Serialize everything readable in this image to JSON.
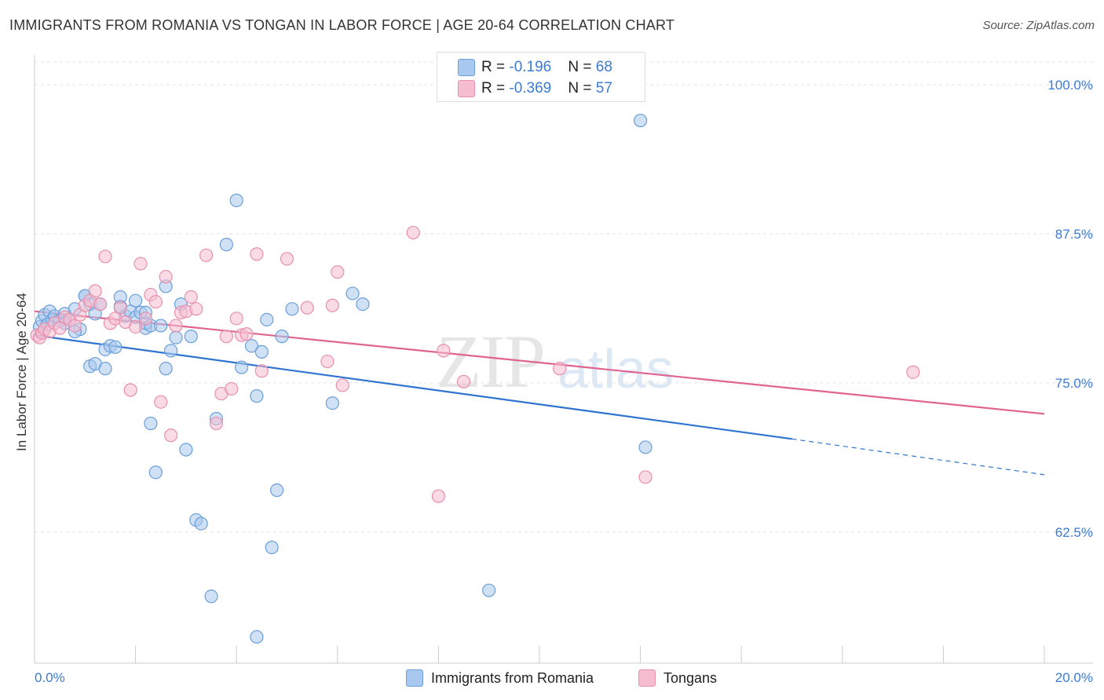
{
  "header": {
    "title": "IMMIGRANTS FROM ROMANIA VS TONGAN IN LABOR FORCE | AGE 20-64 CORRELATION CHART",
    "source": "Source: ZipAtlas.com"
  },
  "watermark": {
    "zip": "ZIP",
    "atlas": "atlas"
  },
  "legend_top": {
    "rows": [
      {
        "r_label": "R = ",
        "r_value": "-0.196",
        "n_label": "N = ",
        "n_value": "68"
      },
      {
        "r_label": "R = ",
        "r_value": "-0.369",
        "n_label": "N = ",
        "n_value": "57"
      }
    ]
  },
  "legend_bottom": {
    "items": [
      "Immigrants from Romania",
      "Tongans"
    ]
  },
  "colors": {
    "blue_fill": "#a9c8ef",
    "blue_stroke": "#6a9fd8",
    "blue_line": "#2f74d0",
    "pink_fill": "#f6bdd0",
    "pink_stroke": "#e88fae",
    "pink_line": "#e0648f",
    "tick_label": "#3a7bd5"
  },
  "chart_data": {
    "type": "scatter",
    "title": "IMMIGRANTS FROM ROMANIA VS TONGAN IN LABOR FORCE | AGE 20-64 CORRELATION CHART",
    "xlabel": "",
    "ylabel": "In Labor Force | Age 20-64",
    "xlim": [
      0,
      20
    ],
    "ylim": [
      51.5,
      102.5
    ],
    "x_tick_labels": [
      "0.0%",
      "20.0%"
    ],
    "y_ticks": [
      62.5,
      75.0,
      87.5,
      100.0
    ],
    "y_tick_labels": [
      "62.5%",
      "75.0%",
      "87.5%",
      "100.0%"
    ],
    "grid": true,
    "legend_placement": "top-center",
    "series": [
      {
        "name": "Immigrants from Romania",
        "r": -0.196,
        "n": 68,
        "trend": {
          "x0": 0,
          "y0": 79.0,
          "x1": 15.0,
          "y1": 70.3,
          "dash_to_x": 20,
          "dash_to_y": 67.3
        },
        "points": [
          [
            0.1,
            79.7
          ],
          [
            0.15,
            80.2
          ],
          [
            0.2,
            80.7
          ],
          [
            0.25,
            79.9
          ],
          [
            0.3,
            81.0
          ],
          [
            0.35,
            80.3
          ],
          [
            0.4,
            80.6
          ],
          [
            0.5,
            80.2
          ],
          [
            0.6,
            80.8
          ],
          [
            0.7,
            80.3
          ],
          [
            0.8,
            81.2
          ],
          [
            0.9,
            79.5
          ],
          [
            1.0,
            82.3
          ],
          [
            1.1,
            81.6
          ],
          [
            1.2,
            80.8
          ],
          [
            0.8,
            79.3
          ],
          [
            1.1,
            76.4
          ],
          [
            1.2,
            76.6
          ],
          [
            1.4,
            77.8
          ],
          [
            1.4,
            76.2
          ],
          [
            1.5,
            78.1
          ],
          [
            1.6,
            78.0
          ],
          [
            1.7,
            81.4
          ],
          [
            1.7,
            82.2
          ],
          [
            1.8,
            80.6
          ],
          [
            1.9,
            81.0
          ],
          [
            2.0,
            80.5
          ],
          [
            2.0,
            81.9
          ],
          [
            2.1,
            80.9
          ],
          [
            2.2,
            79.6
          ],
          [
            2.2,
            80.0
          ],
          [
            2.3,
            79.8
          ],
          [
            2.5,
            79.8
          ],
          [
            2.6,
            76.2
          ],
          [
            2.6,
            83.1
          ],
          [
            2.7,
            77.7
          ],
          [
            2.8,
            78.8
          ],
          [
            2.9,
            81.6
          ],
          [
            3.0,
            69.4
          ],
          [
            3.1,
            78.9
          ],
          [
            3.2,
            63.5
          ],
          [
            3.3,
            63.2
          ],
          [
            3.5,
            57.1
          ],
          [
            3.6,
            72.0
          ],
          [
            3.8,
            86.6
          ],
          [
            4.0,
            90.3
          ],
          [
            4.1,
            76.3
          ],
          [
            4.3,
            78.1
          ],
          [
            4.4,
            53.7
          ],
          [
            4.4,
            73.9
          ],
          [
            4.5,
            77.6
          ],
          [
            4.6,
            80.3
          ],
          [
            4.7,
            61.2
          ],
          [
            4.8,
            66.0
          ],
          [
            4.9,
            78.9
          ],
          [
            5.1,
            81.2
          ],
          [
            5.9,
            73.3
          ],
          [
            6.3,
            82.5
          ],
          [
            6.5,
            81.6
          ],
          [
            9.0,
            57.6
          ],
          [
            12.0,
            97.0
          ],
          [
            12.1,
            69.6
          ],
          [
            2.3,
            71.6
          ],
          [
            2.4,
            67.5
          ],
          [
            1.0,
            82.3
          ],
          [
            0.6,
            80.0
          ],
          [
            1.3,
            81.6
          ],
          [
            2.2,
            80.9
          ]
        ]
      },
      {
        "name": "Tongans",
        "r": -0.369,
        "n": 57,
        "trend": {
          "x0": 0,
          "y0": 81.0,
          "x1": 20,
          "y1": 72.4
        },
        "points": [
          [
            0.05,
            79.0
          ],
          [
            0.1,
            78.8
          ],
          [
            0.15,
            79.2
          ],
          [
            0.2,
            79.5
          ],
          [
            0.3,
            79.3
          ],
          [
            0.4,
            80.0
          ],
          [
            0.5,
            79.6
          ],
          [
            0.6,
            80.5
          ],
          [
            0.7,
            80.3
          ],
          [
            0.8,
            79.8
          ],
          [
            0.9,
            80.7
          ],
          [
            1.0,
            81.5
          ],
          [
            1.1,
            81.9
          ],
          [
            1.2,
            82.7
          ],
          [
            1.3,
            81.6
          ],
          [
            1.4,
            85.6
          ],
          [
            1.5,
            80.0
          ],
          [
            1.6,
            80.4
          ],
          [
            1.7,
            81.3
          ],
          [
            1.8,
            80.1
          ],
          [
            1.9,
            74.4
          ],
          [
            2.0,
            79.7
          ],
          [
            2.1,
            85.0
          ],
          [
            2.2,
            80.4
          ],
          [
            2.3,
            82.4
          ],
          [
            2.4,
            81.8
          ],
          [
            2.5,
            73.4
          ],
          [
            2.6,
            83.9
          ],
          [
            2.7,
            70.6
          ],
          [
            2.8,
            79.8
          ],
          [
            2.9,
            80.9
          ],
          [
            3.0,
            81.0
          ],
          [
            3.1,
            82.2
          ],
          [
            3.2,
            81.2
          ],
          [
            3.4,
            85.7
          ],
          [
            3.6,
            71.6
          ],
          [
            3.7,
            74.1
          ],
          [
            3.8,
            78.9
          ],
          [
            3.9,
            74.5
          ],
          [
            4.0,
            80.4
          ],
          [
            4.1,
            79.0
          ],
          [
            4.2,
            79.1
          ],
          [
            4.4,
            85.8
          ],
          [
            4.5,
            76.0
          ],
          [
            5.0,
            85.4
          ],
          [
            5.4,
            81.3
          ],
          [
            5.8,
            76.8
          ],
          [
            5.9,
            81.5
          ],
          [
            6.0,
            84.3
          ],
          [
            6.1,
            74.8
          ],
          [
            7.5,
            87.6
          ],
          [
            8.0,
            65.5
          ],
          [
            8.1,
            77.7
          ],
          [
            8.5,
            75.1
          ],
          [
            10.4,
            76.2
          ],
          [
            12.1,
            67.1
          ],
          [
            17.4,
            75.9
          ]
        ]
      }
    ]
  }
}
